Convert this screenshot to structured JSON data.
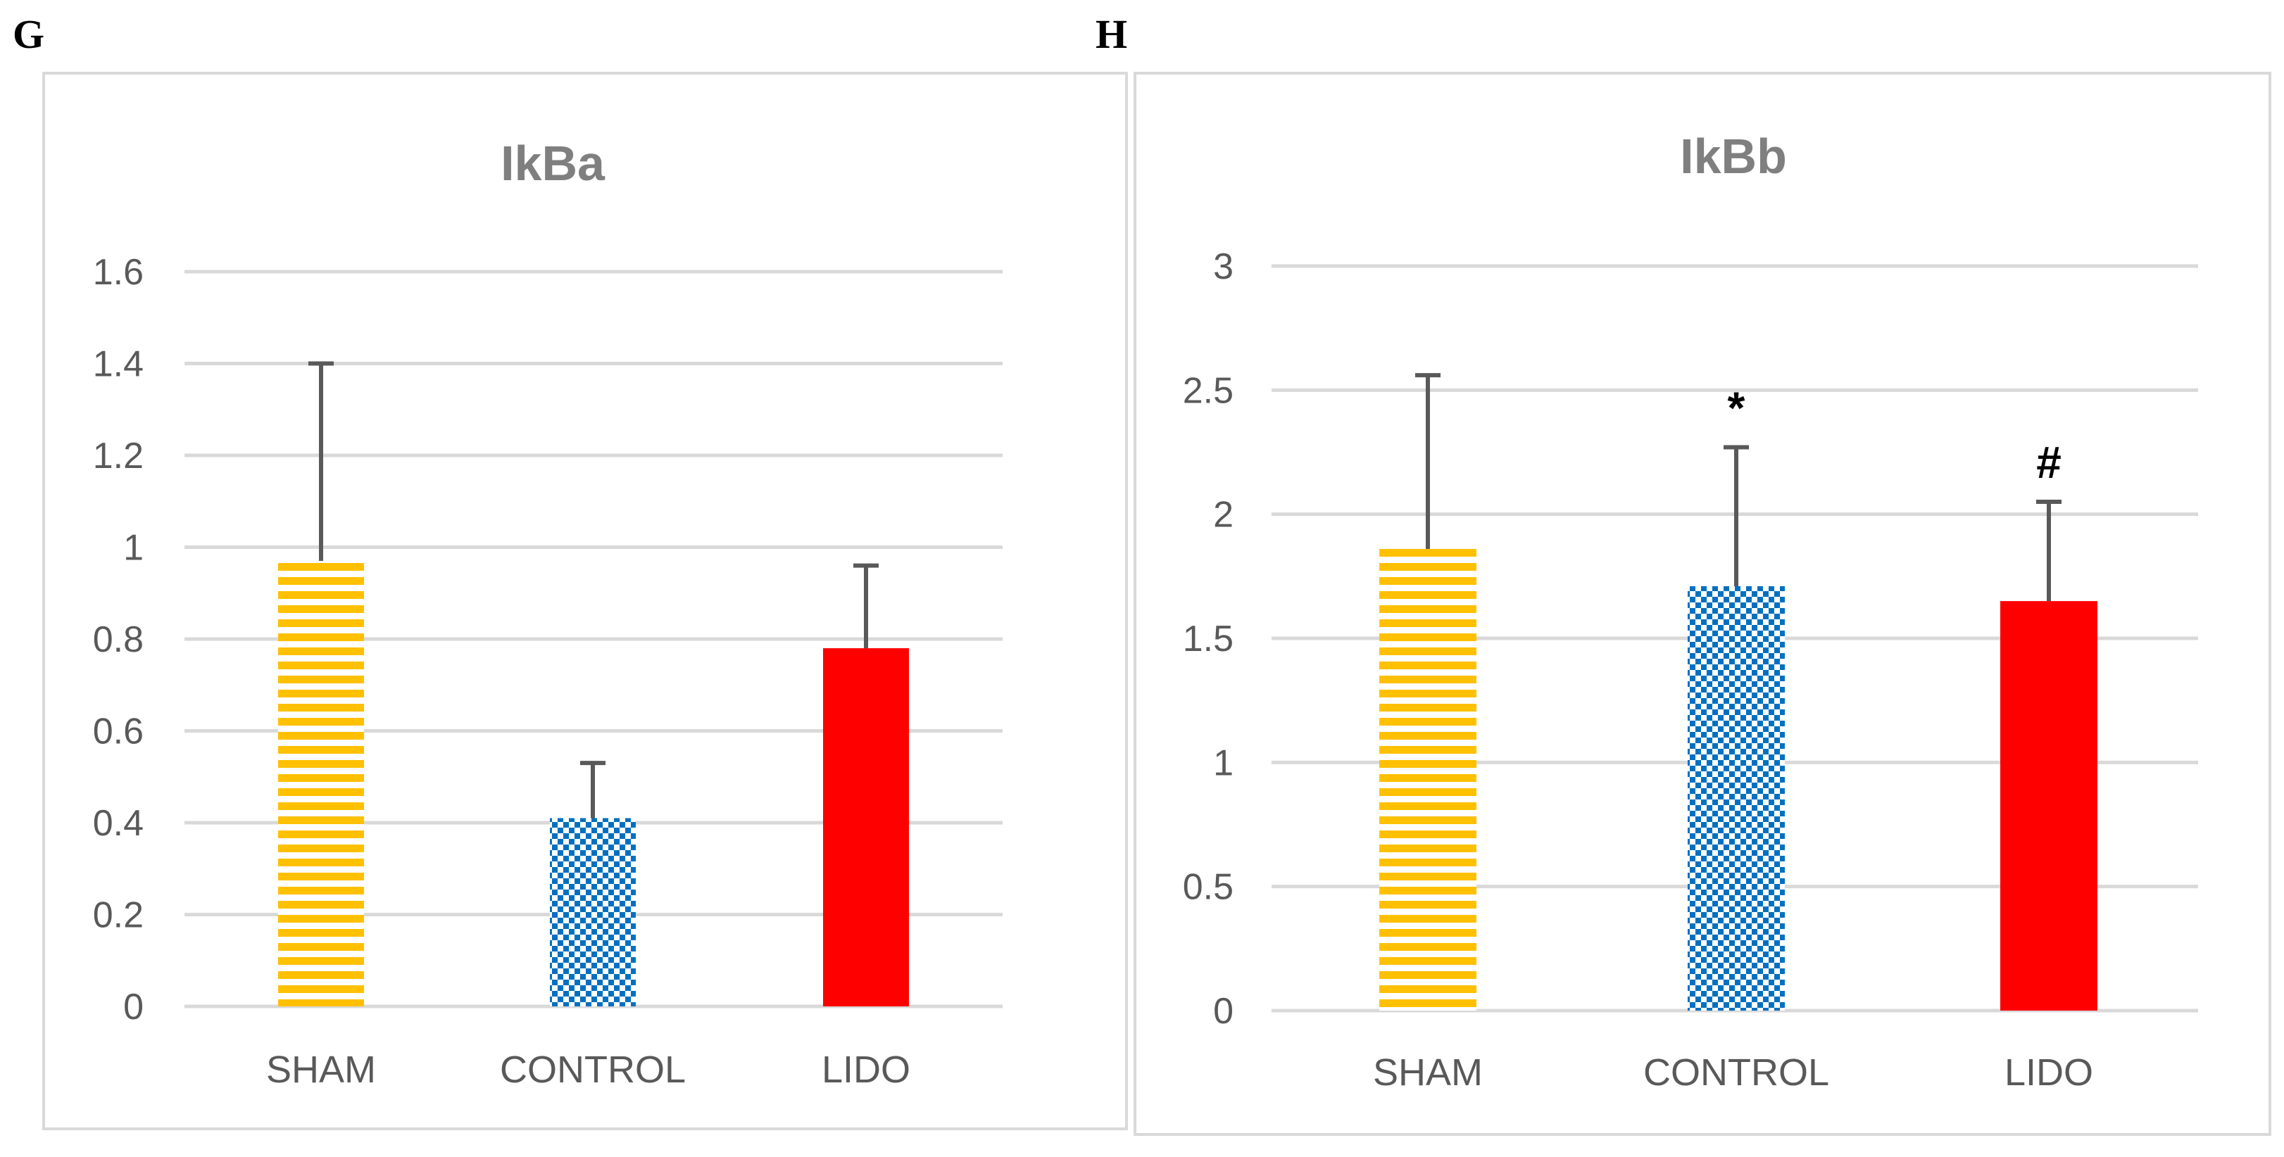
{
  "panels": {
    "g": {
      "letter": "G"
    },
    "h": {
      "letter": "H"
    }
  },
  "colors": {
    "sham_stripe": "#ffc000",
    "control_check": "#0070c0",
    "lido_fill": "#ff0000"
  },
  "chart_data": [
    {
      "panel": "G",
      "type": "bar",
      "title": "IkBa",
      "xlabel": "",
      "ylabel": "",
      "categories": [
        "SHAM",
        "CONTROL",
        "LIDO"
      ],
      "values": [
        0.97,
        0.41,
        0.78
      ],
      "errors": [
        0.43,
        0.12,
        0.18
      ],
      "significance": [
        "",
        "",
        ""
      ],
      "fills": [
        "stripe",
        "check",
        "solid"
      ],
      "ylim": [
        0,
        1.6
      ],
      "yticks": [
        0,
        0.2,
        0.4,
        0.6,
        0.8,
        1,
        1.2,
        1.4,
        1.6
      ],
      "ytick_labels": [
        "0",
        "0.2",
        "0.4",
        "0.6",
        "0.8",
        "1",
        "1.2",
        "1.4",
        "1.6"
      ],
      "grid": true,
      "legend": "none"
    },
    {
      "panel": "H",
      "type": "bar",
      "title": "IkBb",
      "xlabel": "",
      "ylabel": "",
      "categories": [
        "SHAM",
        "CONTROL",
        "LIDO"
      ],
      "values": [
        1.86,
        1.71,
        1.65
      ],
      "errors": [
        0.7,
        0.56,
        0.4
      ],
      "significance": [
        "",
        "*",
        "#"
      ],
      "fills": [
        "stripe",
        "check",
        "solid"
      ],
      "ylim": [
        0,
        3
      ],
      "yticks": [
        0,
        0.5,
        1,
        1.5,
        2,
        2.5,
        3
      ],
      "ytick_labels": [
        "0",
        "0.5",
        "1",
        "1.5",
        "2",
        "2.5",
        "3"
      ],
      "grid": true,
      "legend": "none"
    }
  ]
}
